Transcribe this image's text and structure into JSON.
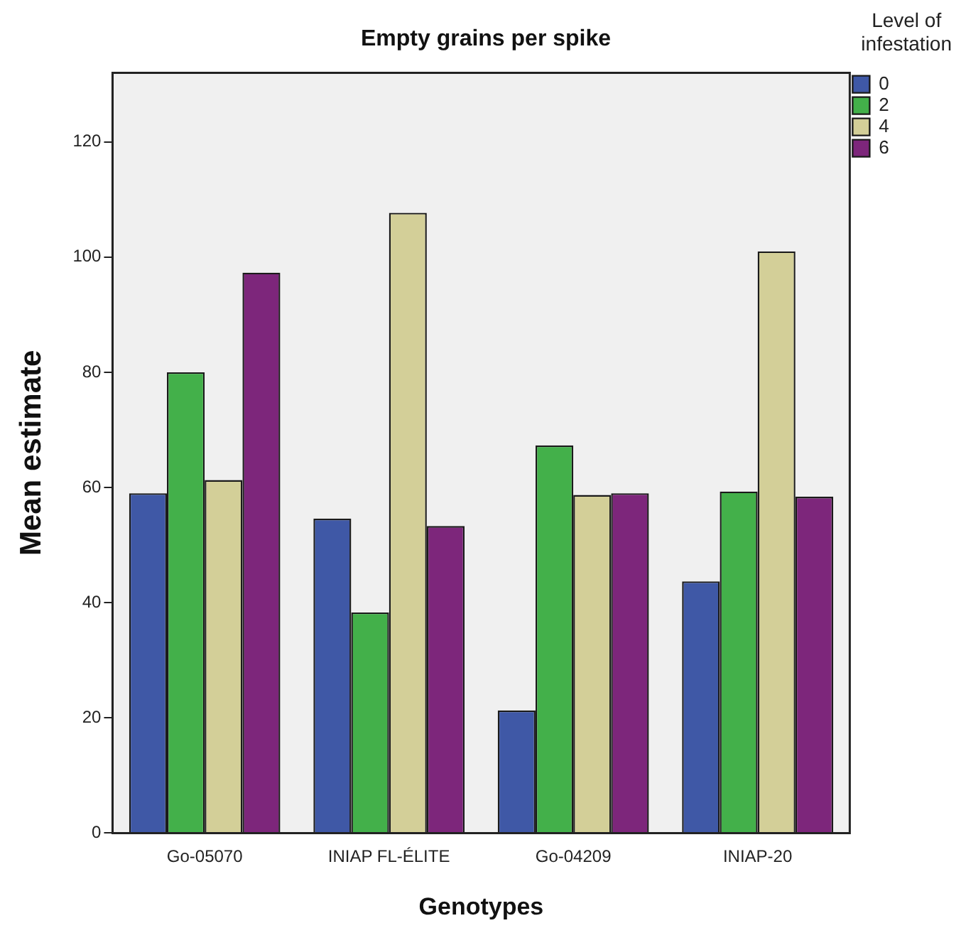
{
  "chart_data": {
    "type": "bar",
    "title": "Empty grains per spike",
    "xlabel": "Genotypes",
    "ylabel": "Mean estimate",
    "legend_title": "Level of infestation",
    "categories": [
      "Go-05070",
      "INIAP FL-ÉLITE",
      "Go-04209",
      "INIAP-20"
    ],
    "series": [
      {
        "name": "0",
        "color": "#3f58a6",
        "values": [
          59,
          54.6,
          21.3,
          43.7
        ]
      },
      {
        "name": "2",
        "color": "#43b04a",
        "values": [
          80,
          38.3,
          67.3,
          59.3
        ]
      },
      {
        "name": "4",
        "color": "#d3cf98",
        "values": [
          61.3,
          107.7,
          58.7,
          101
        ]
      },
      {
        "name": "6",
        "color": "#7d267b",
        "values": [
          97.3,
          53.3,
          59,
          58.4
        ]
      }
    ],
    "ylim": [
      0,
      132
    ],
    "yticks": [
      0,
      20,
      40,
      60,
      80,
      100,
      120
    ],
    "grid": false,
    "legend": "top right"
  }
}
